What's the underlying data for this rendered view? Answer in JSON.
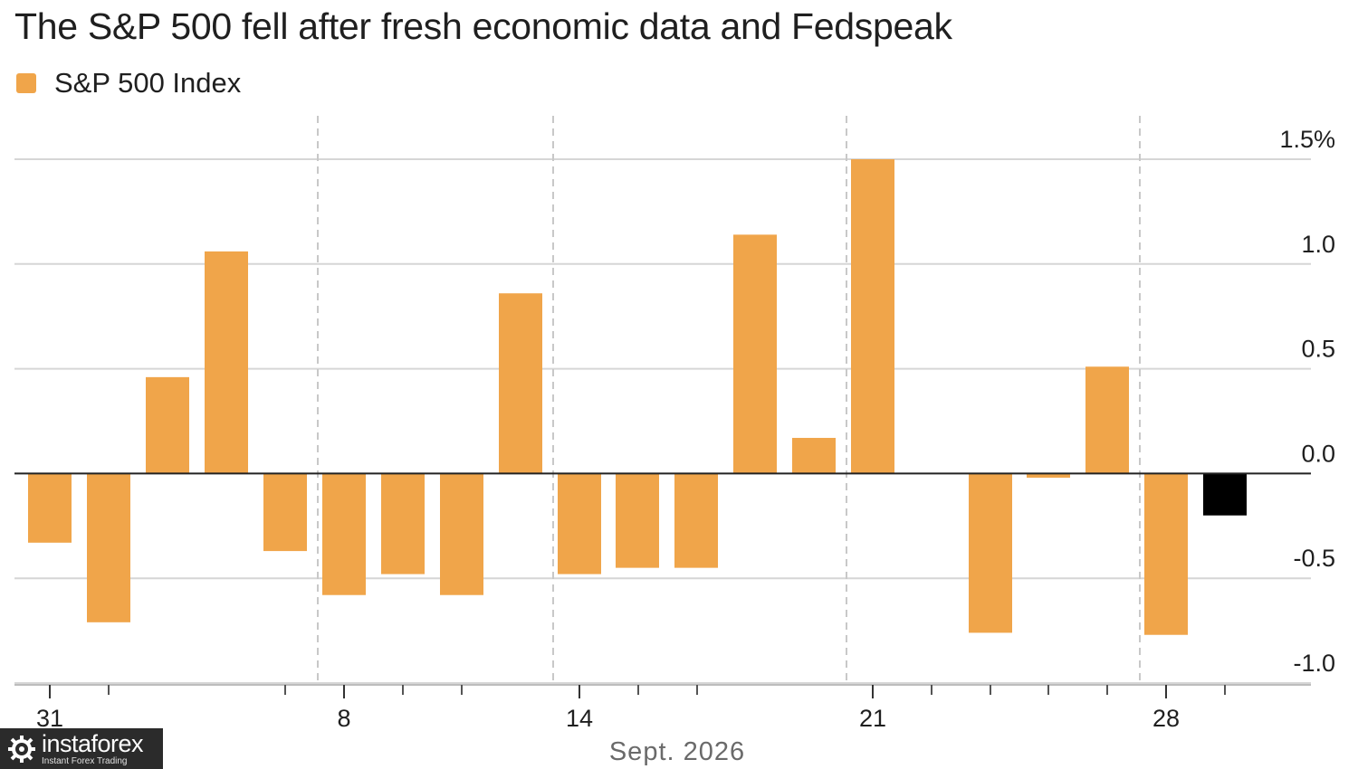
{
  "chart_data": {
    "type": "bar",
    "title": "The S&P 500 fell after fresh economic data and Fedspeak",
    "legend": {
      "entries": [
        "S&P 500 Index"
      ],
      "placement": "top-left"
    },
    "series": [
      {
        "name": "S&P 500 Index",
        "values": [
          -0.33,
          -0.71,
          0.46,
          1.06,
          -0.37,
          -0.58,
          -0.48,
          -0.58,
          0.86,
          -0.48,
          -0.45,
          -0.45,
          1.14,
          0.17,
          1.5,
          -0.76,
          -0.02,
          0.51,
          -0.77,
          -0.2
        ],
        "highlight_index": 19
      }
    ],
    "categories": [
      "Aug 31",
      "Sep 1",
      "Sep 2",
      "Sep 3",
      "Sep 4",
      "Sep 8",
      "Sep 9",
      "Sep 10",
      "Sep 11",
      "Sep 14",
      "Sep 15",
      "Sep 16",
      "Sep 17",
      "Sep 18",
      "Sep 21",
      "Sep 23",
      "Sep 24",
      "Sep 25",
      "Sep 28",
      "Sep 29"
    ],
    "x_tick_labels": [
      "31",
      "8",
      "14",
      "21",
      "28"
    ],
    "xlabel": "Sept. 2026",
    "ylabel": "",
    "y_ticks": [
      "1.5%",
      "1.0",
      "0.5",
      "0.0",
      "-0.5",
      "-1.0"
    ],
    "y_tick_values": [
      1.5,
      1.0,
      0.5,
      0.0,
      -0.5,
      -1.0
    ],
    "ylim": [
      -1.0,
      1.5
    ],
    "grid": true,
    "y_axis_side": "right",
    "colors": {
      "bar": "#f0a54a",
      "highlight": "#000000",
      "grid": "#d6d6d6",
      "zero_line": "#222222",
      "week_divider": "#c8c8c8"
    }
  },
  "watermark": {
    "brand": "instaforex",
    "tagline": "Instant Forex Trading"
  }
}
